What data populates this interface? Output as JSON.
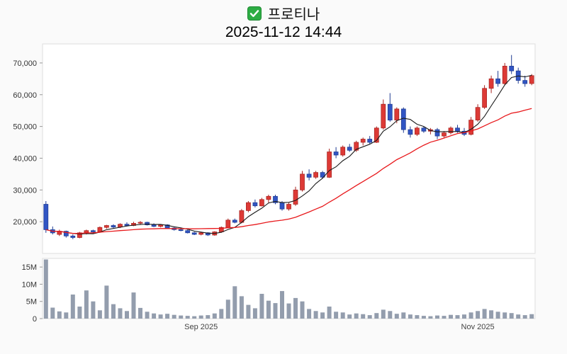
{
  "header": {
    "icon": "green-checkbox-icon",
    "stock_name": "프로티나",
    "datetime": "2025-11-12 14:44"
  },
  "chart_data": {
    "type": "candlestick_with_volume",
    "title": "프로티나",
    "subtitle": "2025-11-12 14:44",
    "price_axis": {
      "ticks": [
        20000,
        30000,
        40000,
        50000,
        60000,
        70000
      ],
      "domain": [
        10000,
        76000
      ],
      "grid": false
    },
    "volume_axis": {
      "ticks": [
        0,
        5000000,
        10000000,
        15000000
      ],
      "labels": [
        "0",
        "5M",
        "10M",
        "15M"
      ],
      "domain": [
        0,
        17500000
      ]
    },
    "x_axis": {
      "tick_labels": [
        {
          "label": "Sep 2025",
          "index": 23
        },
        {
          "label": "Nov 2025",
          "index": 64
        }
      ]
    },
    "overlays": [
      {
        "name": "MA5",
        "color": "#1a1a1a",
        "window": 5,
        "width": 1.1
      },
      {
        "name": "MA20",
        "color": "#e8191c",
        "window": 20,
        "width": 1.3
      }
    ],
    "colors": {
      "up": "#dd3a36",
      "up_border": "#a82421",
      "down": "#3155c4",
      "down_border": "#213d93",
      "volume": "#939dad",
      "plot_bg": "#ffffff",
      "plot_border": "#dddddd",
      "tick_text": "#333333",
      "x_label_text": "#444444"
    },
    "ohlcv_columns": [
      "open",
      "high",
      "low",
      "close",
      "volume"
    ],
    "ohlcv": [
      [
        25500,
        26500,
        16500,
        17500,
        17200000
      ],
      [
        17500,
        18500,
        16000,
        16500,
        3200000
      ],
      [
        16000,
        17500,
        15500,
        17000,
        2100000
      ],
      [
        17000,
        17200,
        15000,
        15500,
        1800000
      ],
      [
        15500,
        16000,
        14500,
        15000,
        7000000
      ],
      [
        15000,
        16800,
        14800,
        16500,
        3500000
      ],
      [
        16500,
        17500,
        16000,
        17200,
        8200000
      ],
      [
        17200,
        17500,
        16200,
        16800,
        5000000
      ],
      [
        16800,
        18500,
        16500,
        18200,
        2400000
      ],
      [
        18200,
        19000,
        17800,
        18800,
        9600000
      ],
      [
        18800,
        19200,
        18000,
        18300,
        4200000
      ],
      [
        18300,
        19500,
        18000,
        19200,
        3000000
      ],
      [
        19200,
        19800,
        18500,
        18800,
        2200000
      ],
      [
        18800,
        20000,
        18600,
        19500,
        7600000
      ],
      [
        19500,
        20200,
        19000,
        19800,
        3100000
      ],
      [
        19800,
        20000,
        18800,
        19000,
        2000000
      ],
      [
        19000,
        19500,
        18300,
        18500,
        1500000
      ],
      [
        18500,
        19200,
        18200,
        19000,
        1200000
      ],
      [
        19000,
        19200,
        17800,
        18000,
        1400000
      ],
      [
        18000,
        18300,
        17200,
        17500,
        1100000
      ],
      [
        17500,
        18200,
        17000,
        17200,
        900000
      ],
      [
        17200,
        17500,
        16300,
        16500,
        800000
      ],
      [
        16500,
        16800,
        15800,
        16000,
        700000
      ],
      [
        16000,
        16800,
        15700,
        16500,
        900000
      ],
      [
        16500,
        16700,
        15500,
        15800,
        1000000
      ],
      [
        15800,
        17000,
        15600,
        16800,
        1500000
      ],
      [
        16800,
        18500,
        16500,
        18200,
        2800000
      ],
      [
        18200,
        21000,
        18000,
        20500,
        5500000
      ],
      [
        20500,
        21000,
        19500,
        19800,
        9400000
      ],
      [
        19800,
        24000,
        19500,
        23500,
        6500000
      ],
      [
        23500,
        26500,
        23000,
        26000,
        4000000
      ],
      [
        26000,
        27000,
        24500,
        25000,
        3000000
      ],
      [
        25000,
        27500,
        24800,
        27000,
        7200000
      ],
      [
        27000,
        28500,
        26000,
        28000,
        5200000
      ],
      [
        28000,
        28500,
        25500,
        26000,
        4500000
      ],
      [
        26000,
        26500,
        23500,
        24000,
        8000000
      ],
      [
        24000,
        26000,
        23500,
        25500,
        4400000
      ],
      [
        25500,
        31000,
        25000,
        30000,
        6000000
      ],
      [
        30000,
        36000,
        29500,
        35000,
        5000000
      ],
      [
        35000,
        36500,
        33000,
        34000,
        2800000
      ],
      [
        34000,
        36000,
        33500,
        35500,
        2200000
      ],
      [
        35500,
        36000,
        33500,
        34000,
        1800000
      ],
      [
        34000,
        43000,
        33800,
        42000,
        3500000
      ],
      [
        42000,
        43500,
        40000,
        41000,
        2000000
      ],
      [
        41000,
        44000,
        40500,
        43500,
        1800000
      ],
      [
        43500,
        44500,
        42000,
        42500,
        1200000
      ],
      [
        42500,
        45500,
        42000,
        45000,
        1500000
      ],
      [
        45000,
        46500,
        44000,
        46000,
        1300000
      ],
      [
        46000,
        47000,
        44500,
        45000,
        1000000
      ],
      [
        45000,
        50000,
        44800,
        49500,
        1600000
      ],
      [
        49500,
        58500,
        49000,
        57000,
        2600000
      ],
      [
        57000,
        60500,
        51500,
        52000,
        2200000
      ],
      [
        52000,
        56000,
        51000,
        55500,
        1400000
      ],
      [
        55500,
        56000,
        48000,
        49000,
        1800000
      ],
      [
        49000,
        50000,
        46500,
        47500,
        1200000
      ],
      [
        47500,
        50000,
        47000,
        49500,
        1000000
      ],
      [
        49500,
        50000,
        48000,
        48500,
        800000
      ],
      [
        48500,
        49500,
        47500,
        49000,
        700000
      ],
      [
        49000,
        49500,
        46000,
        47000,
        900000
      ],
      [
        47000,
        48500,
        46500,
        48000,
        800000
      ],
      [
        48000,
        50000,
        47500,
        49500,
        1100000
      ],
      [
        49500,
        50500,
        48000,
        48500,
        1000000
      ],
      [
        48500,
        49500,
        47000,
        47500,
        1200000
      ],
      [
        47500,
        53000,
        47200,
        52000,
        1800000
      ],
      [
        52000,
        57000,
        51500,
        56000,
        2200000
      ],
      [
        56000,
        63000,
        55500,
        62000,
        2800000
      ],
      [
        62000,
        66000,
        60500,
        65000,
        2400000
      ],
      [
        65000,
        67500,
        62500,
        63500,
        2000000
      ],
      [
        63500,
        70000,
        63000,
        69000,
        1800000
      ],
      [
        69000,
        72500,
        66500,
        67500,
        1600000
      ],
      [
        67500,
        68500,
        63500,
        64500,
        1200000
      ],
      [
        64500,
        66000,
        62500,
        63500,
        1000000
      ],
      [
        63500,
        66500,
        63000,
        66000,
        1300000
      ]
    ]
  }
}
